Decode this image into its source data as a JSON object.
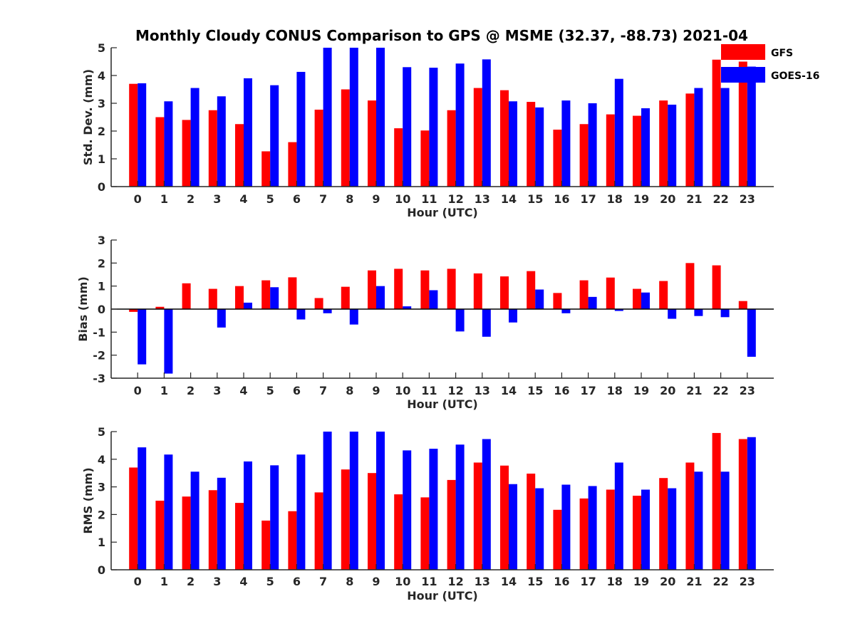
{
  "figure": {
    "title": "Monthly Cloudy CONUS Comparison to GPS @ MSME (32.37, -88.73) 2021-04"
  },
  "legend": {
    "placement": "top-right",
    "items": [
      {
        "label": "GFS",
        "color": "#ff0000"
      },
      {
        "label": "GOES-16",
        "color": "#0000ff"
      }
    ]
  },
  "chart_data": [
    {
      "type": "bar",
      "xlabel": "Hour (UTC)",
      "ylabel": "Std. Dev. (mm)",
      "ylim": [
        0,
        5
      ],
      "yticks": [
        0,
        1,
        2,
        3,
        4,
        5
      ],
      "categories": [
        "0",
        "1",
        "2",
        "3",
        "4",
        "5",
        "6",
        "7",
        "8",
        "9",
        "10",
        "11",
        "12",
        "13",
        "14",
        "15",
        "16",
        "17",
        "18",
        "19",
        "20",
        "21",
        "22",
        "23"
      ],
      "series": [
        {
          "name": "GFS",
          "color": "#ff0000",
          "values": [
            3.7,
            2.5,
            2.4,
            2.75,
            2.25,
            1.27,
            1.6,
            2.77,
            3.5,
            3.1,
            2.1,
            2.02,
            2.75,
            3.55,
            3.47,
            3.05,
            2.05,
            2.25,
            2.6,
            2.55,
            3.1,
            3.35,
            4.57,
            4.5
          ]
        },
        {
          "name": "GOES-16",
          "color": "#0000ff",
          "values": [
            3.72,
            3.07,
            3.55,
            3.25,
            3.9,
            3.65,
            4.13,
            5.0,
            5.0,
            5.0,
            4.3,
            4.28,
            4.43,
            4.58,
            3.07,
            2.85,
            3.1,
            3.0,
            3.88,
            2.82,
            2.95,
            3.55,
            3.55,
            4.32
          ]
        }
      ]
    },
    {
      "type": "bar",
      "xlabel": "Hour (UTC)",
      "ylabel": "Bias (mm)",
      "ylim": [
        -3,
        3
      ],
      "yticks": [
        -3,
        -2,
        -1,
        0,
        1,
        2,
        3
      ],
      "categories": [
        "0",
        "1",
        "2",
        "3",
        "4",
        "5",
        "6",
        "7",
        "8",
        "9",
        "10",
        "11",
        "12",
        "13",
        "14",
        "15",
        "16",
        "17",
        "18",
        "19",
        "20",
        "21",
        "22",
        "23"
      ],
      "series": [
        {
          "name": "GFS",
          "color": "#ff0000",
          "values": [
            -0.12,
            0.1,
            1.12,
            0.88,
            1.0,
            1.25,
            1.38,
            0.48,
            0.97,
            1.68,
            1.75,
            1.68,
            1.75,
            1.55,
            1.42,
            1.65,
            0.7,
            1.25,
            1.37,
            0.88,
            1.22,
            2.0,
            1.9,
            0.35
          ]
        },
        {
          "name": "GOES-16",
          "color": "#0000ff",
          "values": [
            -2.4,
            -2.8,
            0.0,
            -0.8,
            0.28,
            0.95,
            -0.45,
            -0.18,
            -0.67,
            1.0,
            0.12,
            0.82,
            -0.97,
            -1.2,
            -0.58,
            0.85,
            -0.18,
            0.53,
            -0.08,
            0.72,
            -0.42,
            -0.3,
            -0.35,
            -2.07
          ]
        }
      ]
    },
    {
      "type": "bar",
      "xlabel": "Hour (UTC)",
      "ylabel": "RMS (mm)",
      "ylim": [
        0,
        5
      ],
      "yticks": [
        0,
        1,
        2,
        3,
        4,
        5
      ],
      "categories": [
        "0",
        "1",
        "2",
        "3",
        "4",
        "5",
        "6",
        "7",
        "8",
        "9",
        "10",
        "11",
        "12",
        "13",
        "14",
        "15",
        "16",
        "17",
        "18",
        "19",
        "20",
        "21",
        "22",
        "23"
      ],
      "series": [
        {
          "name": "GFS",
          "color": "#ff0000",
          "values": [
            3.7,
            2.5,
            2.65,
            2.88,
            2.42,
            1.78,
            2.12,
            2.8,
            3.63,
            3.5,
            2.73,
            2.62,
            3.25,
            3.88,
            3.77,
            3.48,
            2.17,
            2.58,
            2.9,
            2.68,
            3.32,
            3.88,
            4.95,
            4.73
          ]
        },
        {
          "name": "GOES-16",
          "color": "#0000ff",
          "values": [
            4.43,
            4.17,
            3.55,
            3.33,
            3.92,
            3.78,
            4.17,
            5.0,
            5.0,
            5.0,
            4.32,
            4.38,
            4.53,
            4.73,
            3.1,
            2.95,
            3.08,
            3.03,
            3.88,
            2.9,
            2.95,
            3.55,
            3.55,
            4.8
          ]
        }
      ]
    }
  ]
}
